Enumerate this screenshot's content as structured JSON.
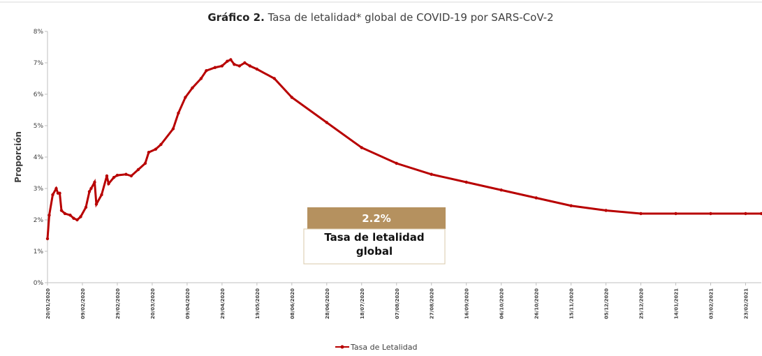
{
  "chart_data": {
    "type": "line",
    "title_bold": "Gráfico 2.",
    "title": "Tasa de letalidad* global de COVID-19 por SARS-CoV-2",
    "ylabel": "Proporción",
    "annotation": {
      "value_label": "2.2%",
      "text": "Tasa de letalidad global"
    },
    "x": [
      "20/01/2020",
      "21/01/2020",
      "23/01/2020",
      "25/01/2020",
      "26/01/2020",
      "27/01/2020",
      "28/01/2020",
      "30/01/2020",
      "02/02/2020",
      "04/02/2020",
      "06/02/2020",
      "08/02/2020",
      "11/02/2020",
      "13/02/2020",
      "14/02/2020",
      "16/02/2020",
      "17/02/2020",
      "20/02/2020",
      "23/02/2020",
      "24/02/2020",
      "27/02/2020",
      "29/02/2020",
      "05/03/2020",
      "08/03/2020",
      "12/03/2020",
      "16/03/2020",
      "18/03/2020",
      "22/03/2020",
      "25/03/2020",
      "01/04/2020",
      "04/04/2020",
      "08/04/2020",
      "12/04/2020",
      "17/04/2020",
      "20/04/2020",
      "25/04/2020",
      "29/04/2020",
      "02/05/2020",
      "04/05/2020",
      "06/05/2020",
      "09/05/2020",
      "12/05/2020",
      "15/05/2020",
      "19/05/2020",
      "29/05/2020",
      "08/06/2020",
      "28/06/2020",
      "18/07/2020",
      "07/08/2020",
      "27/08/2020",
      "16/09/2020",
      "06/10/2020",
      "26/10/2020",
      "15/11/2020",
      "05/12/2020",
      "25/12/2020",
      "14/01/2021",
      "03/02/2021",
      "23/02/2021",
      "04/03/2021"
    ],
    "series": [
      {
        "name": "Tasa de Letalidad",
        "color": "#b80000",
        "values": [
          1.4,
          2.15,
          2.8,
          3.0,
          2.85,
          2.85,
          2.3,
          2.2,
          2.15,
          2.05,
          2.0,
          2.1,
          2.4,
          2.9,
          3.0,
          3.2,
          2.5,
          2.8,
          3.4,
          3.15,
          3.35,
          3.42,
          3.45,
          3.4,
          3.6,
          3.8,
          4.15,
          4.25,
          4.4,
          4.9,
          5.4,
          5.9,
          6.2,
          6.5,
          6.75,
          6.85,
          6.9,
          7.05,
          7.1,
          6.95,
          6.9,
          7.0,
          6.9,
          6.8,
          6.5,
          5.9,
          5.1,
          4.3,
          3.8,
          3.45,
          3.2,
          2.95,
          2.7,
          2.45,
          2.3,
          2.2,
          2.2,
          2.2,
          2.2,
          2.2
        ]
      }
    ],
    "xlim": [
      "20/01/2020",
      "04/03/2021"
    ],
    "xticks": [
      "20/01/2020",
      "09/02/2020",
      "29/02/2020",
      "20/03/2020",
      "09/04/2020",
      "29/04/2020",
      "19/05/2020",
      "08/06/2020",
      "28/06/2020",
      "18/07/2020",
      "07/08/2020",
      "27/08/2020",
      "16/09/2020",
      "06/10/2020",
      "26/10/2020",
      "15/11/2020",
      "05/12/2020",
      "25/12/2020",
      "14/01/2021",
      "03/02/2021",
      "23/02/2021"
    ],
    "ylim": [
      0,
      8
    ],
    "yticks": [
      {
        "value": 0,
        "label": "0%"
      },
      {
        "value": 1,
        "label": "1%"
      },
      {
        "value": 2,
        "label": "2%"
      },
      {
        "value": 3,
        "label": "3%"
      },
      {
        "value": 4,
        "label": "4%"
      },
      {
        "value": 5,
        "label": "5%"
      },
      {
        "value": 6,
        "label": "6%"
      },
      {
        "value": 7,
        "label": "7%"
      },
      {
        "value": 8,
        "label": "8%"
      }
    ],
    "grid": false,
    "legend": "bottom"
  }
}
